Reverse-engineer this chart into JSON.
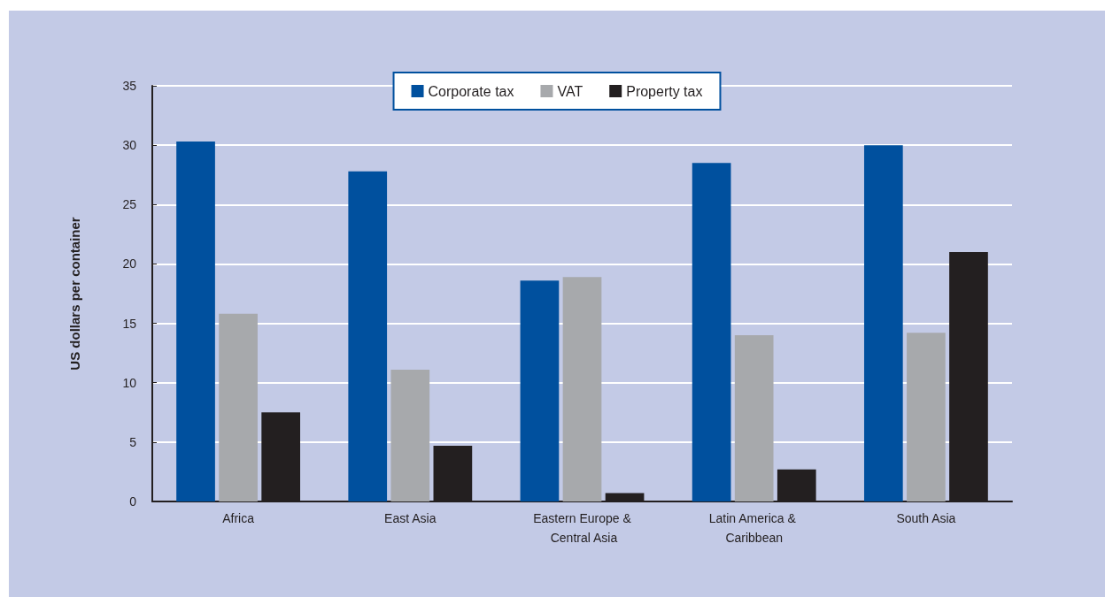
{
  "chart_data": {
    "type": "bar",
    "ylabel": "US dollars per container",
    "categories": [
      "Africa",
      "East Asia",
      "Eastern Europe & Central Asia",
      "Latin America & Caribbean",
      "South Asia"
    ],
    "series": [
      {
        "name": "Corporate tax",
        "color": "#00509e",
        "values": [
          30.3,
          27.8,
          18.6,
          28.5,
          30.0
        ]
      },
      {
        "name": "VAT",
        "color": "#a7a9ac",
        "values": [
          15.8,
          11.1,
          18.9,
          14.0,
          14.2
        ]
      },
      {
        "name": "Property tax",
        "color": "#231f20",
        "values": [
          7.5,
          4.7,
          0.7,
          2.7,
          21.0
        ]
      }
    ],
    "ylim": [
      0,
      35
    ],
    "yticks": [
      0,
      5,
      10,
      15,
      20,
      25,
      30,
      35
    ],
    "grid": "y",
    "legend": "top"
  }
}
